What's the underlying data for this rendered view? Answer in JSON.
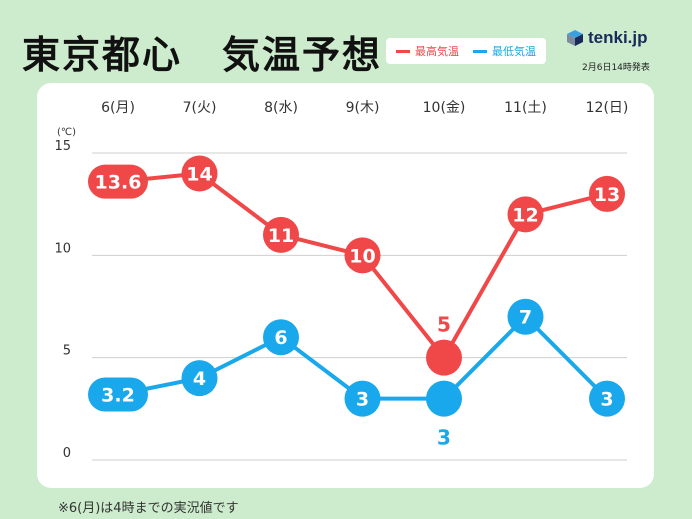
{
  "header": {
    "title": "東京都心　気温予想",
    "issued": "2月6日14時発表",
    "logo_text": "tenki.jp"
  },
  "legend": {
    "max_label": "最高気温",
    "min_label": "最低気温"
  },
  "footnote": "※6(月)は4時までの実況値です",
  "colors": {
    "max": "#f04848",
    "min": "#1aa8ec",
    "background": "#cdeccd",
    "panel": "#ffffff"
  },
  "chart_data": {
    "type": "line",
    "categories": [
      "6(月)",
      "7(火)",
      "8(水)",
      "9(木)",
      "10(金)",
      "11(土)",
      "12(日)"
    ],
    "series": [
      {
        "name": "最高気温",
        "values": [
          13.6,
          14,
          11,
          10,
          5,
          12,
          13
        ]
      },
      {
        "name": "最低気温",
        "values": [
          3.2,
          4,
          6,
          3,
          3,
          7,
          3
        ]
      }
    ],
    "ylabel": "(℃)",
    "ylim": [
      0,
      15
    ],
    "yticks": [
      0,
      5,
      10,
      15
    ],
    "grid": true
  }
}
